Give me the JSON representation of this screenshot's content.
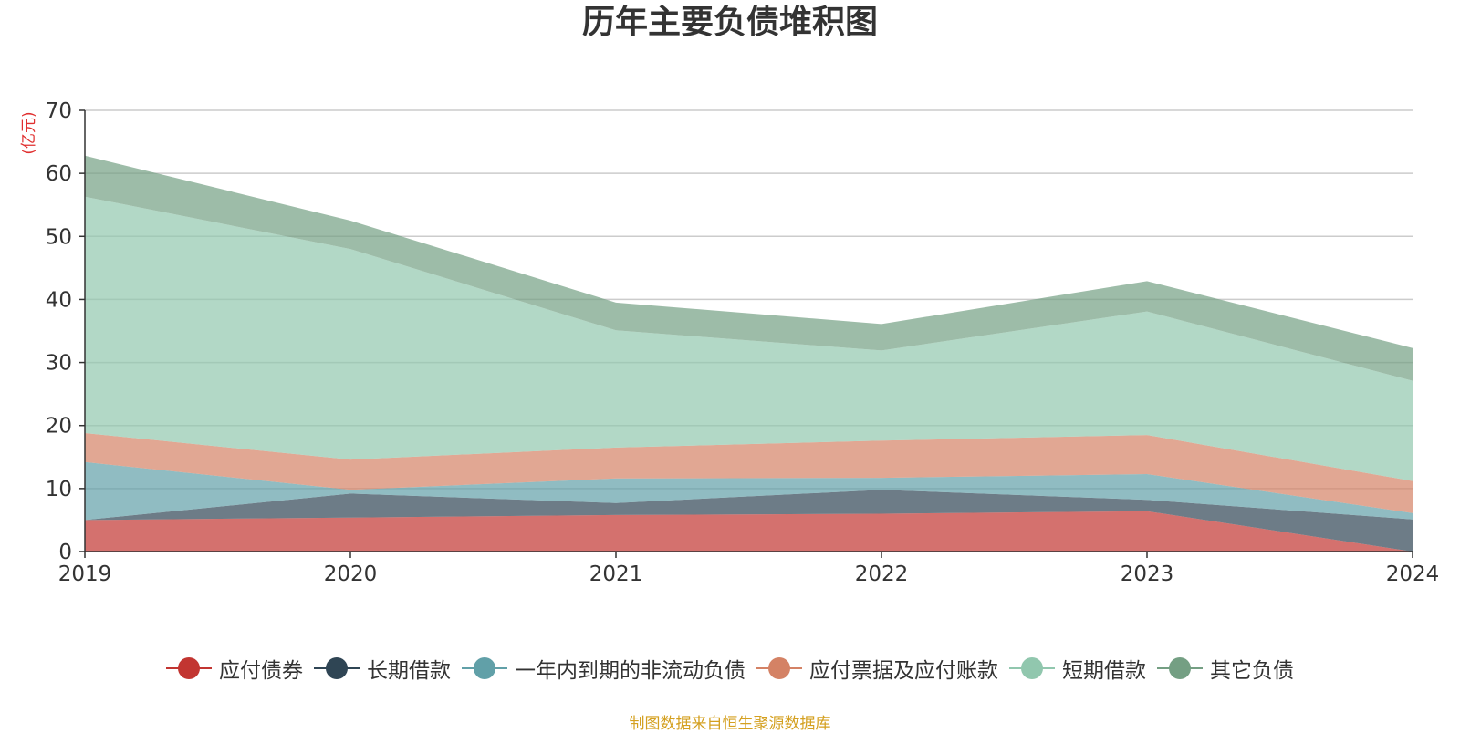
{
  "chart_data": {
    "type": "area",
    "stacked": true,
    "title": "历年主要负债堆积图",
    "unit_label": "(亿元)",
    "x": [
      "2019",
      "2020",
      "2021",
      "2022",
      "2023",
      "2024"
    ],
    "ylim": [
      0,
      70
    ],
    "y_ticks": [
      "0",
      "10",
      "20",
      "30",
      "40",
      "50",
      "60",
      "70"
    ],
    "grid": true,
    "legend_position": "bottom",
    "series": [
      {
        "name": "应付债券",
        "color": "#c23531",
        "values": [
          5.0,
          5.4,
          5.8,
          6.0,
          6.4,
          0.0
        ]
      },
      {
        "name": "长期借款",
        "color": "#2f4554",
        "values": [
          0.0,
          3.8,
          1.9,
          3.8,
          1.8,
          5.1
        ]
      },
      {
        "name": "一年内到期的非流动负债",
        "color": "#61a0a8",
        "values": [
          9.2,
          0.6,
          3.9,
          1.9,
          4.1,
          1.0
        ]
      },
      {
        "name": "应付票据及应付账款",
        "color": "#d48265",
        "values": [
          4.6,
          4.8,
          4.9,
          5.9,
          6.2,
          5.1
        ]
      },
      {
        "name": "短期借款",
        "color": "#91c7ae",
        "values": [
          37.5,
          33.4,
          18.6,
          14.3,
          19.6,
          15.9
        ]
      },
      {
        "name": "其它负债",
        "color": "#749f83",
        "values": [
          6.5,
          4.5,
          4.4,
          4.2,
          4.8,
          5.2
        ]
      }
    ]
  },
  "source_note": "制图数据来自恒生聚源数据库",
  "colors": {
    "title": "#333333",
    "unit_label": "#e03030",
    "source_note": "#d4a020",
    "grid": "#cccccc",
    "axis": "#333333"
  }
}
